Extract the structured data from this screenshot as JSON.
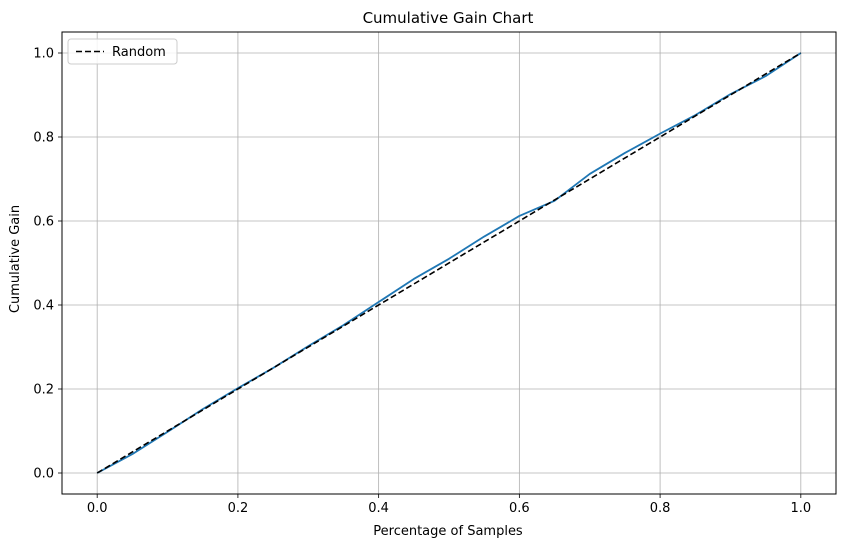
{
  "chart_data": {
    "type": "line",
    "title": "Cumulative Gain Chart",
    "xlabel": "Percentage of Samples",
    "ylabel": "Cumulative Gain",
    "xlim": [
      -0.05,
      1.05
    ],
    "ylim": [
      -0.05,
      1.05
    ],
    "xticks": [
      0.0,
      0.2,
      0.4,
      0.6,
      0.8,
      1.0
    ],
    "yticks": [
      0.0,
      0.2,
      0.4,
      0.6,
      0.8,
      1.0
    ],
    "xtick_labels": [
      "0.0",
      "0.2",
      "0.4",
      "0.6",
      "0.8",
      "1.0"
    ],
    "ytick_labels": [
      "0.0",
      "0.2",
      "0.4",
      "0.6",
      "0.8",
      "1.0"
    ],
    "grid": true,
    "legend_position": "top-left",
    "series": [
      {
        "color": "#1f77b4",
        "style": "solid",
        "x": [
          0.0,
          0.05,
          0.1,
          0.15,
          0.2,
          0.25,
          0.3,
          0.35,
          0.4,
          0.45,
          0.5,
          0.55,
          0.6,
          0.65,
          0.7,
          0.75,
          0.8,
          0.85,
          0.9,
          0.95,
          1.0
        ],
        "y": [
          0.0,
          0.045,
          0.098,
          0.152,
          0.202,
          0.25,
          0.302,
          0.352,
          0.407,
          0.462,
          0.51,
          0.563,
          0.612,
          0.648,
          0.712,
          0.762,
          0.808,
          0.852,
          0.902,
          0.945,
          1.0
        ]
      },
      {
        "name": "Random",
        "color": "#000000",
        "style": "dashed",
        "x": [
          0.0,
          1.0
        ],
        "y": [
          0.0,
          1.0
        ]
      }
    ]
  }
}
